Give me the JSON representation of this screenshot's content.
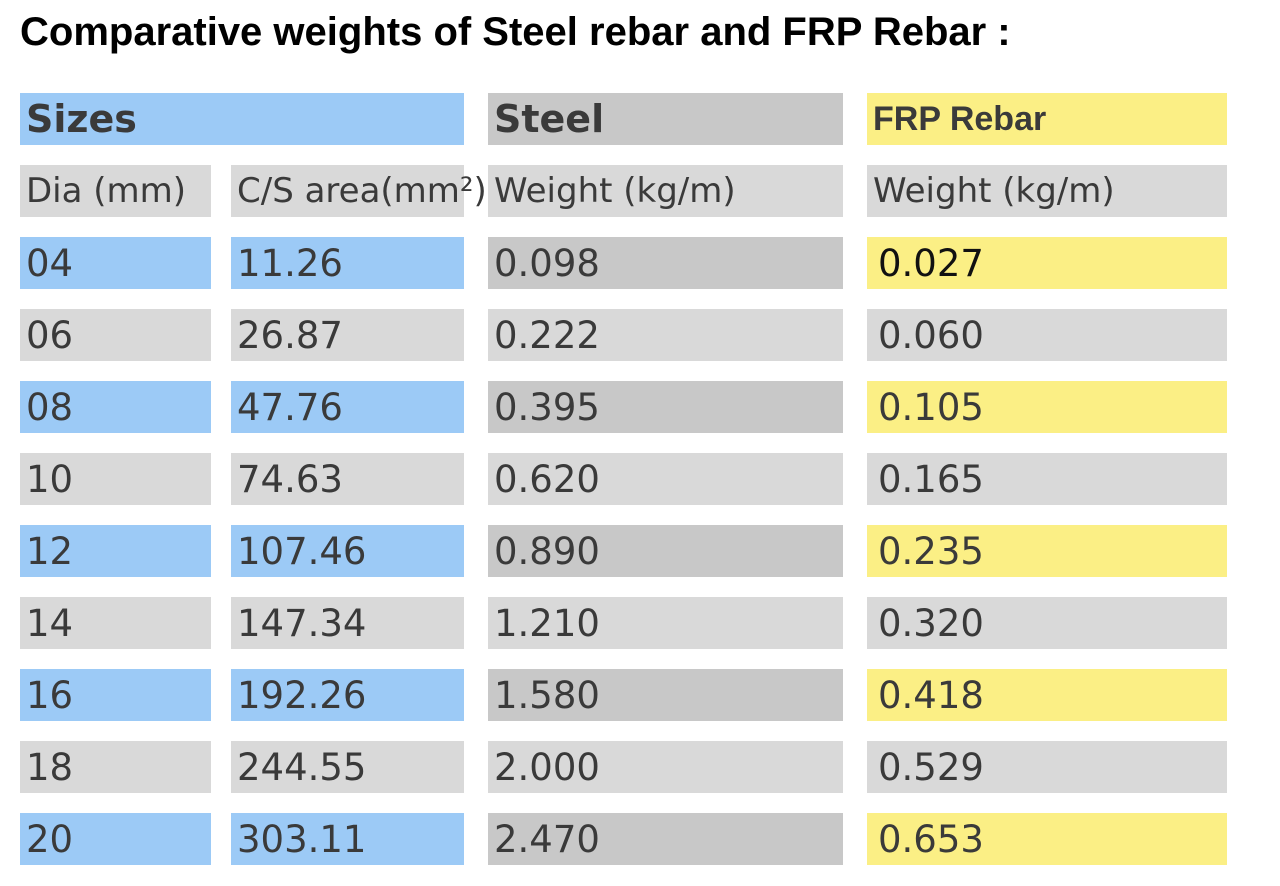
{
  "title": "Comparative weights of Steel rebar and FRP Rebar :",
  "colors": {
    "blue": "#9ccaf6",
    "gray_light": "#d9d9d9",
    "gray_dark": "#c8c8c8",
    "yellow": "#fbef85"
  },
  "header": {
    "sizes": "Sizes",
    "steel": "Steel",
    "frp": "FRP Rebar"
  },
  "subheader": {
    "dia": "Dia (mm)",
    "area": "C/S area(mm²)",
    "steel_weight": "Weight (kg/m)",
    "frp_weight": "Weight (kg/m)"
  },
  "rows": [
    {
      "dia": "04",
      "area": "11.26",
      "steel": "0.098",
      "frp": "0.027"
    },
    {
      "dia": "06",
      "area": "26.87",
      "steel": "0.222",
      "frp": "0.060"
    },
    {
      "dia": "08",
      "area": "47.76",
      "steel": "0.395",
      "frp": "0.105"
    },
    {
      "dia": "10",
      "area": "74.63",
      "steel": "0.620",
      "frp": "0.165"
    },
    {
      "dia": "12",
      "area": "107.46",
      "steel": "0.890",
      "frp": "0.235"
    },
    {
      "dia": "14",
      "area": "147.34",
      "steel": "1.210",
      "frp": "0.320"
    },
    {
      "dia": "16",
      "area": "192.26",
      "steel": "1.580",
      "frp": "0.418"
    },
    {
      "dia": "18",
      "area": "244.55",
      "steel": "2.000",
      "frp": "0.529"
    },
    {
      "dia": "20",
      "area": "303.11",
      "steel": "2.470",
      "frp": "0.653"
    }
  ]
}
